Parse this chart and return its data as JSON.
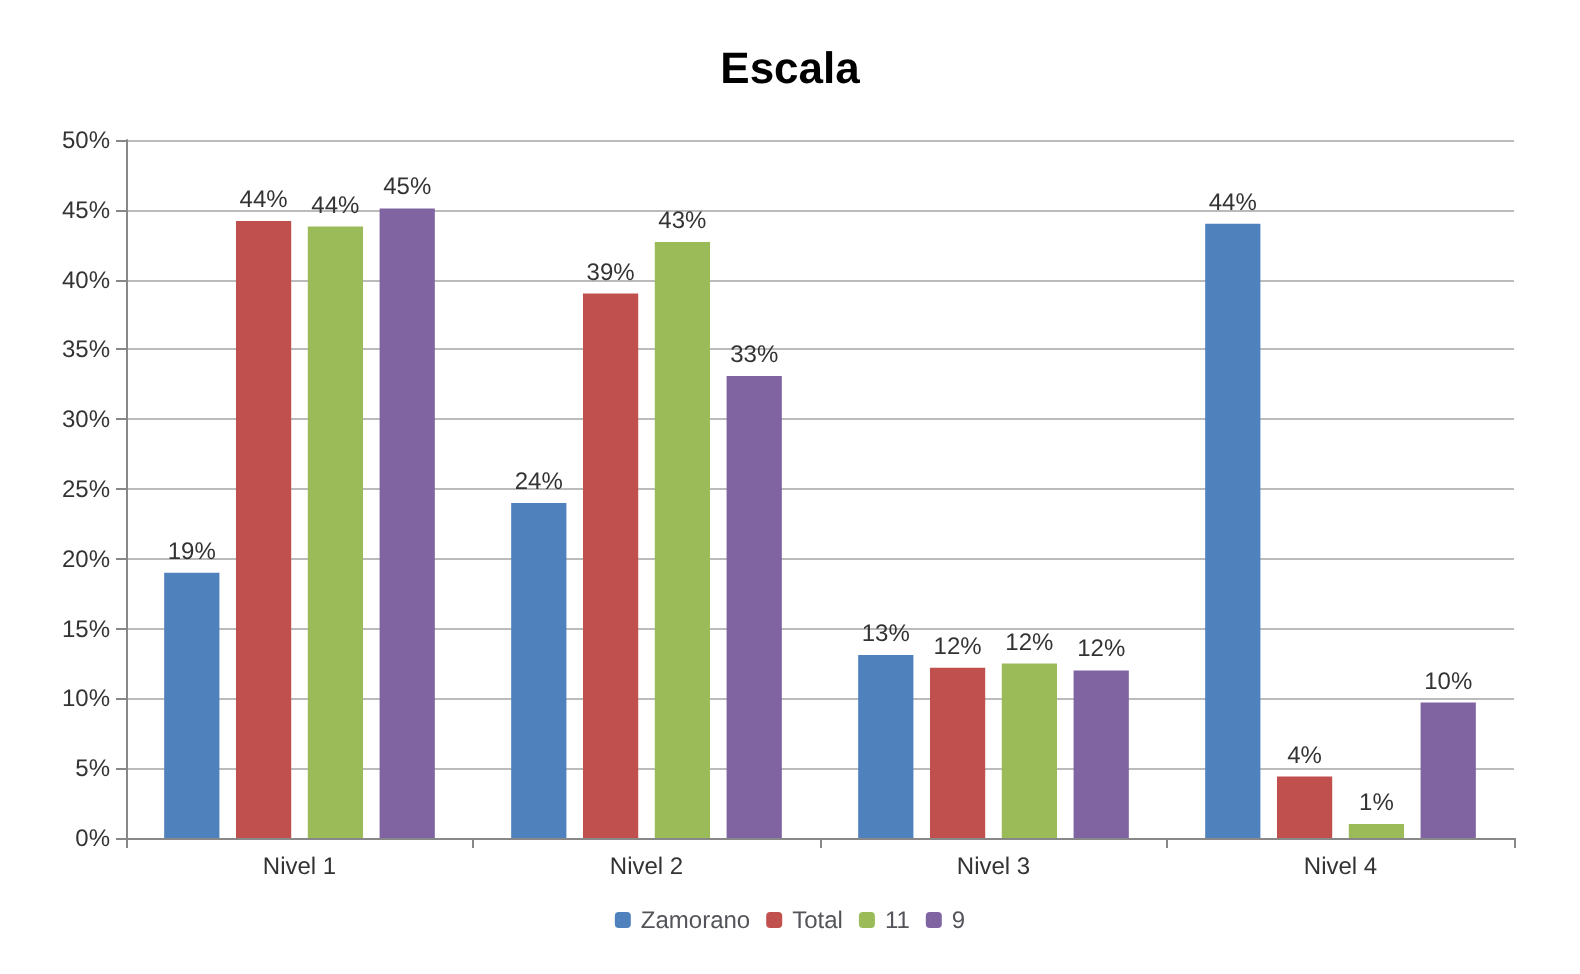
{
  "chart_data": {
    "type": "bar",
    "title": "Escala",
    "categories": [
      "Nivel 1",
      "Nivel 2",
      "Nivel 3",
      "Nivel 4"
    ],
    "series": [
      {
        "name": "Zamorano",
        "color": "#4f81bd",
        "values": [
          19,
          24,
          13.1,
          44
        ],
        "value_labels": [
          "19%",
          "24%",
          "13%",
          "44%"
        ]
      },
      {
        "name": "Total",
        "color": "#c0504d",
        "values": [
          44.2,
          39,
          12.2,
          4.4
        ],
        "value_labels": [
          "44%",
          "39%",
          "12%",
          "4%"
        ]
      },
      {
        "name": "11",
        "color": "#9bbb59",
        "values": [
          43.8,
          42.7,
          12.5,
          1
        ],
        "value_labels": [
          "44%",
          "43%",
          "12%",
          "1%"
        ]
      },
      {
        "name": "9",
        "color": "#8064a2",
        "values": [
          45.1,
          33.1,
          12,
          9.7
        ],
        "value_labels": [
          "45%",
          "33%",
          "12%",
          "10%"
        ]
      }
    ],
    "ylim": [
      0,
      50
    ],
    "yticks": [
      {
        "value": 0,
        "label": "0%"
      },
      {
        "value": 5,
        "label": "5%"
      },
      {
        "value": 10,
        "label": "10%"
      },
      {
        "value": 15,
        "label": "15%"
      },
      {
        "value": 20,
        "label": "20%"
      },
      {
        "value": 25,
        "label": "25%"
      },
      {
        "value": 30,
        "label": "30%"
      },
      {
        "value": 35,
        "label": "35%"
      },
      {
        "value": 40,
        "label": "40%"
      },
      {
        "value": 45,
        "label": "45%"
      },
      {
        "value": 50,
        "label": "50%"
      }
    ],
    "grid": "y",
    "legend": "bottom"
  }
}
